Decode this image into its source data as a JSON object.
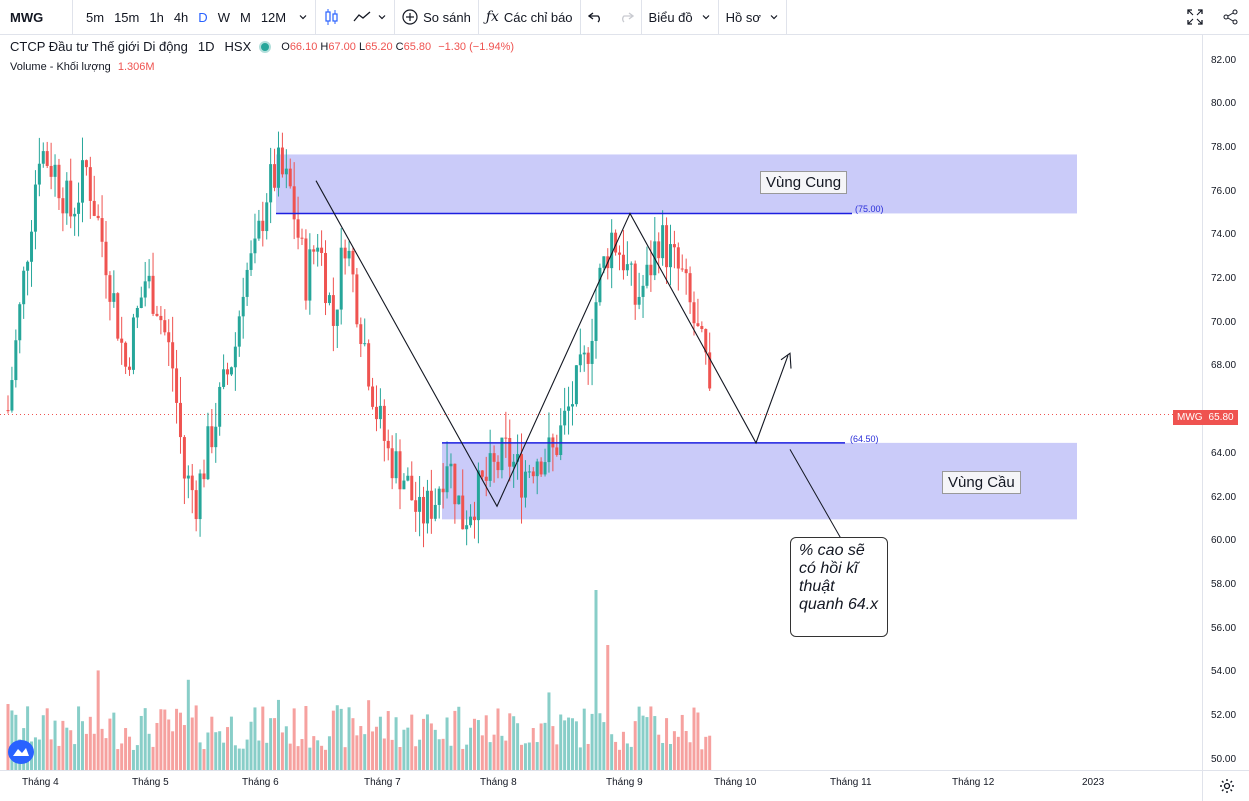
{
  "toolbar": {
    "symbol": "MWG",
    "intervals": [
      "5m",
      "15m",
      "1h",
      "4h",
      "D",
      "W",
      "M",
      "12M"
    ],
    "active_interval": "D",
    "compare_label": "So sánh",
    "indicators_label": "Các chỉ báo",
    "chart_label": "Biểu đồ",
    "profile_label": "Hồ sơ"
  },
  "legend": {
    "name": "CTCP Đầu tư Thế giới Di động",
    "interval": "1D",
    "exchange": "HSX",
    "open_label": "O",
    "open": "66.10",
    "high_label": "H",
    "high": "67.00",
    "low_label": "L",
    "low": "65.20",
    "close_label": "C",
    "close": "65.80",
    "change": "−1.30 (−1.94%)",
    "volume_label": "Volume - Khối lượng",
    "volume": "1.306M"
  },
  "price_axis": [
    "82.00",
    "80.00",
    "78.00",
    "76.00",
    "74.00",
    "72.00",
    "70.00",
    "68.00",
    "66.00",
    "64.00",
    "62.00",
    "60.00",
    "58.00",
    "56.00",
    "54.00",
    "52.00",
    "50.00"
  ],
  "price_tag": {
    "symbol": "MWG",
    "value": "65.80"
  },
  "time_axis": [
    "Tháng 4",
    "Tháng 5",
    "Tháng 6",
    "Tháng 7",
    "Tháng 8",
    "Tháng 9",
    "Tháng 10",
    "Tháng 11",
    "Tháng 12",
    "2023"
  ],
  "drawings": {
    "supply_zone": "Vùng Cung",
    "demand_zone": "Vùng Cầu",
    "resistance": "(75.00)",
    "support": "(64.50)",
    "callout": "% cao sẽ có hồi kĩ thuật quanh 64.x"
  },
  "colors": {
    "up": "#26a69a",
    "down": "#ef5350",
    "zone": "#b8b9f7",
    "level": "#1c1fe0"
  }
}
